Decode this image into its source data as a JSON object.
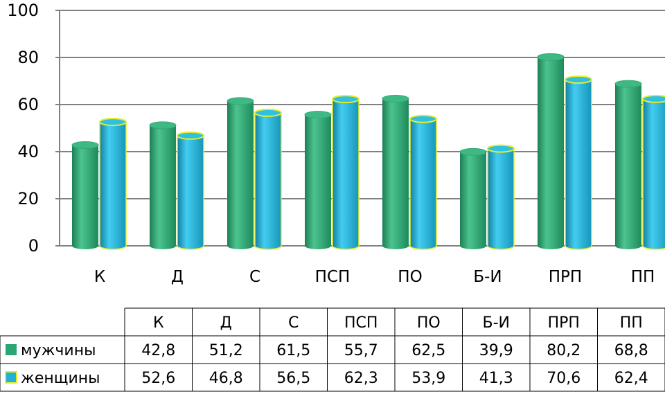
{
  "chart_data": {
    "type": "bar",
    "categories": [
      "К",
      "Д",
      "С",
      "ПСП",
      "ПО",
      "Б-И",
      "ПРП",
      "ПП"
    ],
    "series": [
      {
        "name": "мужчины",
        "values": [
          42.8,
          51.2,
          61.5,
          55.7,
          62.5,
          39.9,
          80.2,
          68.8
        ],
        "labels": [
          "42,8",
          "51,2",
          "61,5",
          "55,7",
          "62,5",
          "39,9",
          "80,2",
          "68,8"
        ]
      },
      {
        "name": "женщины",
        "values": [
          52.6,
          46.8,
          56.5,
          62.3,
          53.9,
          41.3,
          70.6,
          62.4
        ],
        "labels": [
          "52,6",
          "46,8",
          "56,5",
          "62,3",
          "53,9",
          "41,3",
          "70,6",
          "62,4"
        ]
      }
    ],
    "ylim": [
      0,
      100
    ],
    "yticks": [
      "0",
      "20",
      "40",
      "60",
      "80",
      "100"
    ],
    "grid": true,
    "legend": "data-table",
    "title": "",
    "xlabel": "",
    "ylabel": ""
  },
  "colors": {
    "series1": "#2aa574",
    "series2": "#1fb2d6",
    "series2_outline": "#e8ec2a",
    "grid": "#808080"
  }
}
